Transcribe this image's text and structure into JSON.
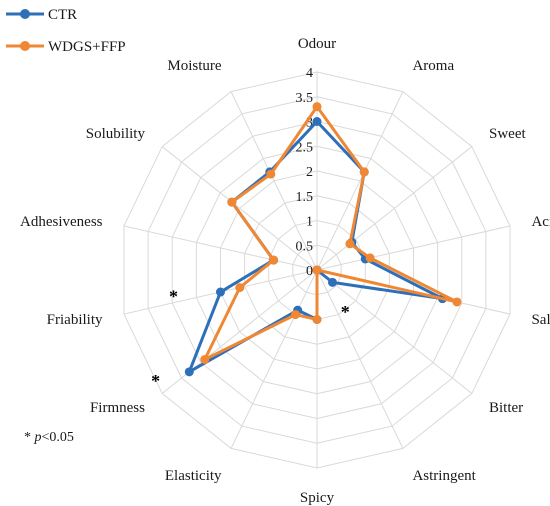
{
  "chart_data": {
    "type": "radar",
    "axes": [
      "Odour",
      "Aroma",
      "Sweet",
      "Acidity",
      "Salty",
      "Bitter",
      "Astringent",
      "Spicy",
      "Elasticity",
      "Firmness",
      "Friability",
      "Adhesiveness",
      "Solubility",
      "Moisture"
    ],
    "rlim": [
      0,
      4
    ],
    "ticks": [
      "0",
      "0.5",
      "1",
      "1.5",
      "2",
      "2.5",
      "3",
      "3.5",
      "4"
    ],
    "tick_values": [
      0,
      0.5,
      1,
      1.5,
      2,
      2.5,
      3,
      3.5,
      4
    ],
    "grid": true,
    "legend_position": "top-left",
    "series": [
      {
        "name": "CTR",
        "color": "#2e6fba",
        "values": [
          3.0,
          2.2,
          0.9,
          1.0,
          2.6,
          0.4,
          0.0,
          1.0,
          0.9,
          3.3,
          2.0,
          0.9,
          2.2,
          2.2
        ]
      },
      {
        "name": "WDGS+FFP",
        "color": "#ef8733",
        "values": [
          3.3,
          2.2,
          0.85,
          1.1,
          2.9,
          0.0,
          0.0,
          1.0,
          1.0,
          2.9,
          1.6,
          0.9,
          2.2,
          2.15
        ]
      }
    ],
    "significance_markers": [
      "*",
      "*",
      "*"
    ],
    "footnote": {
      "symbol": "*",
      "p": "p",
      "rest": "<0.05"
    }
  }
}
